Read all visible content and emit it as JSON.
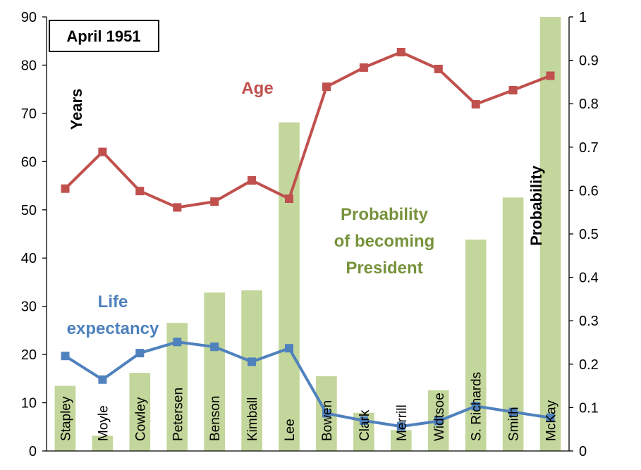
{
  "chart_data": {
    "type": "bar",
    "title": "April 1951",
    "categories": [
      "Stapley",
      "Moyle",
      "Cowley",
      "Petersen",
      "Benson",
      "Kimball",
      "Lee",
      "Bowen",
      "Clark",
      "Merrill",
      "Widtsoe",
      "S. Richards",
      "Smith",
      "McKay"
    ],
    "y_left": {
      "label": "Years",
      "ticks": [
        "0",
        "10",
        "20",
        "30",
        "40",
        "50",
        "60",
        "70",
        "80",
        "90"
      ],
      "lim": [
        0,
        90
      ]
    },
    "y_right": {
      "label": "Probability",
      "ticks": [
        "0",
        "0.1",
        "0.2",
        "0.3",
        "0.4",
        "0.5",
        "0.6",
        "0.7",
        "0.8",
        "0.9",
        "1"
      ],
      "lim": [
        0,
        1
      ]
    },
    "grid": false,
    "series": [
      {
        "name": "Probability of becoming President",
        "kind": "bar",
        "axis": "right",
        "color": "#c3d69b",
        "label_color": "#77933c",
        "label_lines": [
          "Probability",
          "of becoming",
          "President"
        ],
        "values": [
          0.15,
          0.035,
          0.18,
          0.295,
          0.365,
          0.37,
          0.757,
          0.172,
          0.088,
          0.048,
          0.14,
          0.487,
          0.584,
          1.0
        ]
      },
      {
        "name": "Age",
        "kind": "line",
        "axis": "left",
        "color": "#c0504d",
        "label_lines": [
          "Age"
        ],
        "values": [
          54.4,
          62.0,
          53.9,
          50.5,
          51.7,
          56.1,
          52.3,
          75.5,
          79.5,
          82.7,
          79.2,
          71.9,
          74.8,
          77.8
        ]
      },
      {
        "name": "Life expectancy",
        "kind": "line",
        "axis": "left",
        "color": "#4f81bd",
        "label_lines": [
          "Life",
          "expectancy"
        ],
        "values": [
          19.7,
          14.8,
          20.3,
          22.6,
          21.6,
          18.5,
          21.3,
          7.8,
          6.3,
          5.1,
          6.2,
          9.3,
          8.1,
          6.9
        ]
      }
    ]
  }
}
